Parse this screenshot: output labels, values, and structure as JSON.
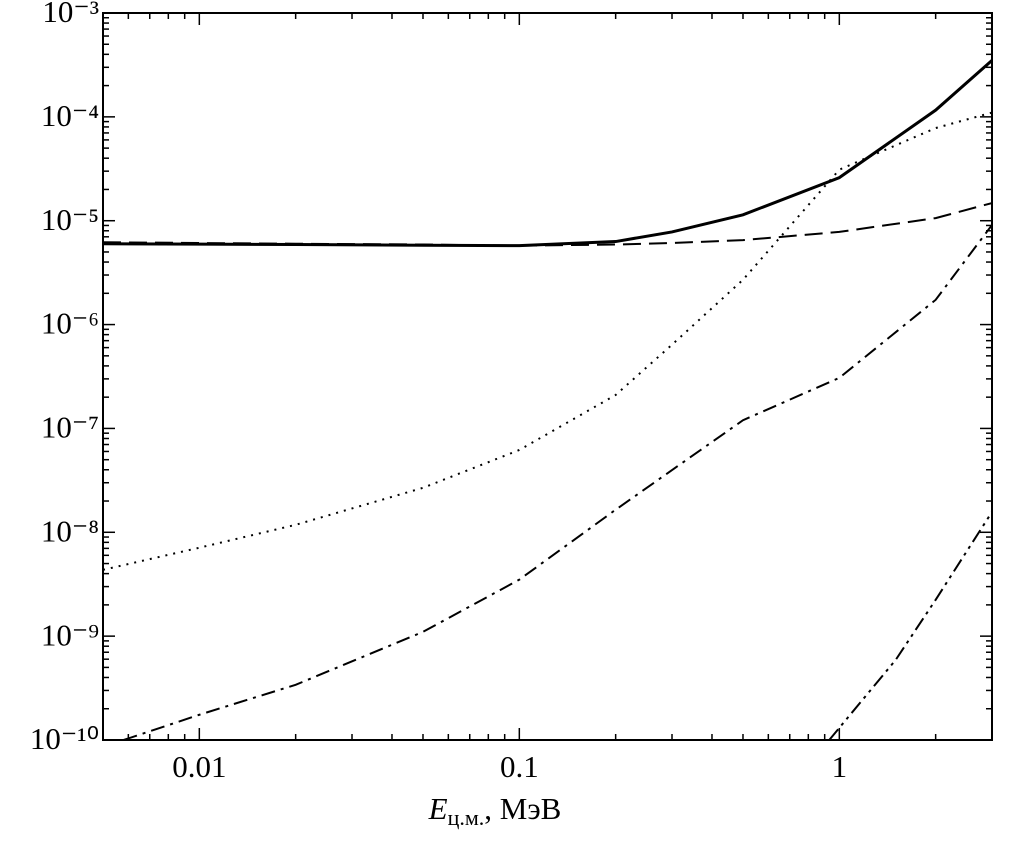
{
  "chart_data": {
    "type": "line",
    "xlabel": {
      "symbol": "E",
      "subscript": "ц.м.",
      "unit": ", МэВ"
    },
    "xscale": "log",
    "yscale": "log",
    "xlim": [
      0.005,
      3
    ],
    "ylim": [
      1e-10,
      0.001
    ],
    "xticks": [
      0.01,
      0.1,
      1
    ],
    "xminorticks": [
      0.005,
      0.006,
      0.007,
      0.008,
      0.009,
      0.02,
      0.03,
      0.04,
      0.05,
      0.06,
      0.07,
      0.08,
      0.09,
      0.2,
      0.3,
      0.4,
      0.5,
      0.6,
      0.7,
      0.8,
      0.9,
      2,
      3
    ],
    "yticks": [
      {
        "value": 1e-10,
        "label": "10⁻¹⁰"
      },
      {
        "value": 1e-09,
        "label": "10⁻⁹"
      },
      {
        "value": 1e-08,
        "label": "10⁻⁸"
      },
      {
        "value": 1e-07,
        "label": "10⁻⁷"
      },
      {
        "value": 1e-06,
        "label": "10⁻⁶"
      },
      {
        "value": 1e-05,
        "label": "10⁻⁵"
      },
      {
        "value": 0.0001,
        "label": "10⁻⁴"
      },
      {
        "value": 0.001,
        "label": "10⁻³"
      }
    ],
    "yminorticks": [
      2e-10,
      3e-10,
      4e-10,
      5e-10,
      6e-10,
      7e-10,
      8e-10,
      9e-10,
      2e-09,
      3e-09,
      4e-09,
      5e-09,
      6e-09,
      7e-09,
      8e-09,
      9e-09,
      2e-08,
      3e-08,
      4e-08,
      5e-08,
      6e-08,
      7e-08,
      8e-08,
      9e-08,
      2e-07,
      3e-07,
      4e-07,
      5e-07,
      6e-07,
      7e-07,
      8e-07,
      9e-07,
      2e-06,
      3e-06,
      4e-06,
      5e-06,
      6e-06,
      7e-06,
      8e-06,
      9e-06,
      2e-05,
      3e-05,
      4e-05,
      5e-05,
      6e-05,
      7e-05,
      8e-05,
      9e-05,
      0.0002,
      0.0003,
      0.0004,
      0.0005,
      0.0006,
      0.0007,
      0.0008,
      0.0009
    ],
    "series": [
      {
        "color": "#000000",
        "dash": "solid",
        "width": 3,
        "x": [
          0.005,
          0.01,
          0.02,
          0.05,
          0.1,
          0.2,
          0.3,
          0.5,
          1,
          2,
          3
        ],
        "values": [
          6e-06,
          5.95e-06,
          5.9e-06,
          5.8e-06,
          5.75e-06,
          6.3e-06,
          7.8e-06,
          1.14e-05,
          2.6e-05,
          0.000116,
          0.00035
        ]
      },
      {
        "color": "#000000",
        "dash": "dashed",
        "width": 2,
        "x": [
          0.005,
          0.01,
          0.02,
          0.05,
          0.1,
          0.2,
          0.3,
          0.5,
          1,
          2,
          3
        ],
        "values": [
          6.2e-06,
          6.1e-06,
          6e-06,
          5.9e-06,
          5.75e-06,
          5.9e-06,
          6.1e-06,
          6.5e-06,
          7.8e-06,
          1.06e-05,
          1.48e-05
        ]
      },
      {
        "color": "#000000",
        "dash": "dotted",
        "width": 2,
        "x": [
          0.005,
          0.01,
          0.02,
          0.05,
          0.1,
          0.2,
          0.3,
          0.5,
          1,
          2,
          3
        ],
        "values": [
          4.35e-09,
          7.1e-09,
          1.18e-08,
          2.68e-08,
          6.2e-08,
          2.1e-07,
          6.4e-07,
          2.7e-06,
          3.1e-05,
          7.8e-05,
          0.00011
        ]
      },
      {
        "color": "#000000",
        "dash": "dashdot",
        "width": 2,
        "x": [
          0.0058,
          0.01,
          0.02,
          0.05,
          0.1,
          0.2,
          0.5,
          1,
          2,
          3
        ],
        "values": [
          1e-10,
          1.75e-10,
          3.4e-10,
          1.1e-09,
          3.5e-09,
          1.65e-08,
          1.2e-07,
          3.07e-07,
          1.73e-06,
          9.1e-06
        ]
      },
      {
        "color": "#000000",
        "dash": "dashdotdot",
        "width": 2,
        "x": [
          0.93,
          1,
          1.5,
          2,
          3
        ],
        "values": [
          1e-10,
          1.31e-10,
          5.9e-10,
          2.24e-09,
          1.57e-08
        ]
      }
    ]
  }
}
